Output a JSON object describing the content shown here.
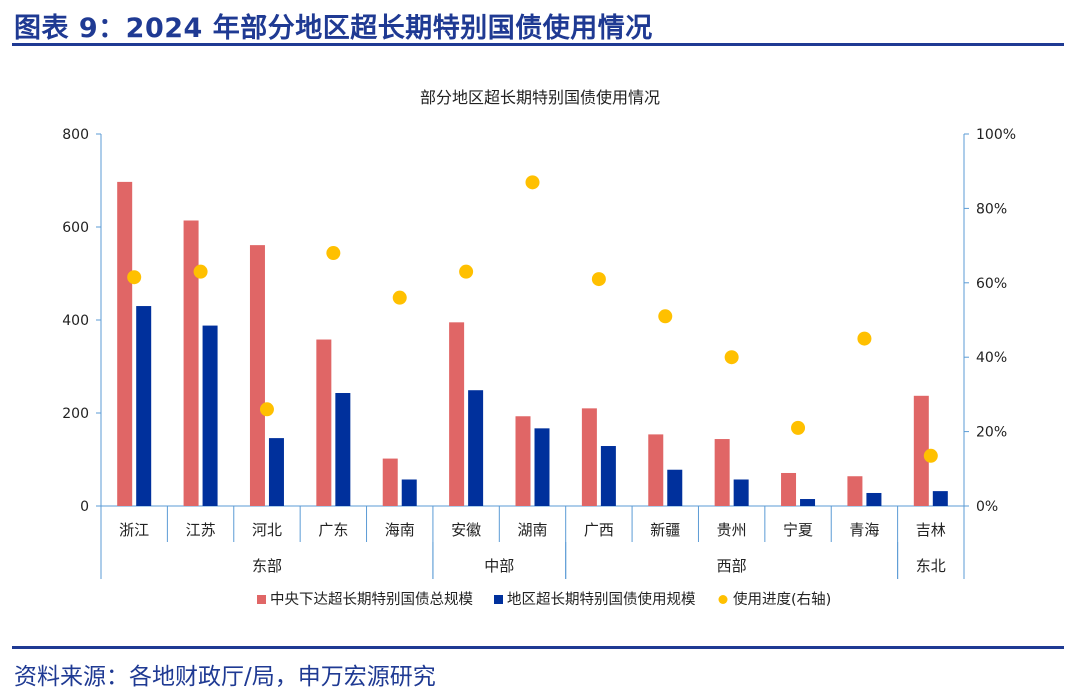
{
  "figure_title": "图表 9：2024 年部分地区超长期特别国债使用情况",
  "source": "资料来源：各地财政厅/局，申万宏源研究",
  "colors": {
    "total": "#e06666",
    "used": "#00309c",
    "progress": "#ffc000",
    "axis": "#5b9bd5",
    "title_blue": "#1f3a93"
  },
  "chart_data": {
    "type": "bar",
    "title": "部分地区超长期特别国债使用情况",
    "categories": [
      "浙江",
      "江苏",
      "河北",
      "广东",
      "海南",
      "安徽",
      "湖南",
      "广西",
      "新疆",
      "贵州",
      "宁夏",
      "青海",
      "吉林"
    ],
    "groups": [
      {
        "label": "东部",
        "start": 0,
        "end": 4
      },
      {
        "label": "中部",
        "start": 5,
        "end": 6
      },
      {
        "label": "西部",
        "start": 7,
        "end": 11
      },
      {
        "label": "东北",
        "start": 12,
        "end": 12
      }
    ],
    "series": [
      {
        "name": "中央下达超长期特别国债总规模",
        "type": "bar",
        "axis": "left",
        "values": [
          697,
          614,
          561,
          358,
          102,
          395,
          193,
          210,
          154,
          144,
          71,
          64,
          237
        ]
      },
      {
        "name": "地区超长期特别国债使用规模",
        "type": "bar",
        "axis": "left",
        "values": [
          430,
          388,
          146,
          243,
          57,
          249,
          167,
          129,
          78,
          57,
          15,
          28,
          32
        ]
      },
      {
        "name": "使用进度(右轴)",
        "type": "scatter",
        "axis": "right",
        "values": [
          61.5,
          63,
          26,
          68,
          56,
          63,
          87,
          61,
          51,
          40,
          21,
          45,
          13.5
        ]
      }
    ],
    "ylim_left": [
      0,
      800
    ],
    "yticks_left": [
      0,
      200,
      400,
      600,
      800
    ],
    "ylim_right": [
      0,
      100
    ],
    "yticks_right": [
      "0%",
      "20%",
      "40%",
      "60%",
      "80%",
      "100%"
    ],
    "legend_position": "bottom",
    "grid": false
  }
}
